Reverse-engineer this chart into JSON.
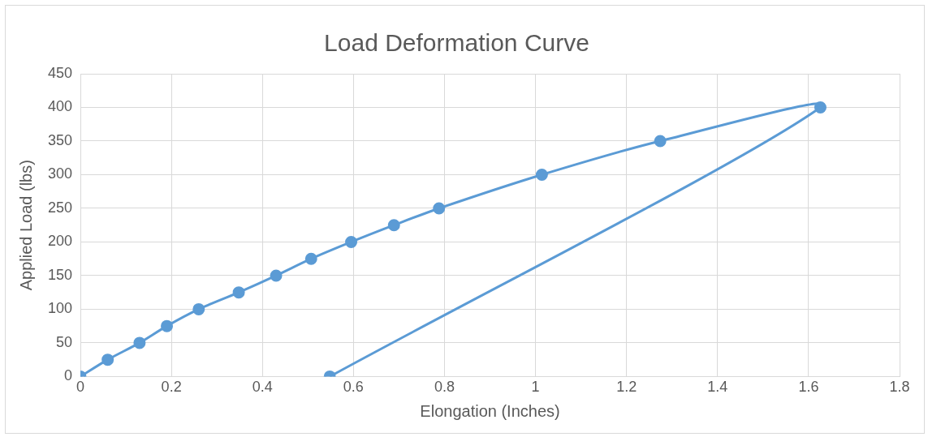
{
  "chart_data": {
    "type": "line",
    "title": "Load Deformation Curve",
    "xlabel": "Elongation (Inches)",
    "ylabel": "Applied Load (lbs)",
    "series": [
      {
        "color": "#5b9bd5",
        "x": [
          0,
          0.06,
          0.13,
          0.19,
          0.26,
          0.348,
          0.43,
          0.507,
          0.595,
          0.689,
          0.788,
          1.014,
          1.274,
          1.626,
          0.548
        ],
        "values": [
          0,
          25,
          50,
          75,
          100,
          125,
          150,
          175,
          200,
          225,
          250,
          300,
          350,
          400,
          0
        ]
      }
    ],
    "xlim": [
      0,
      1.8
    ],
    "xticks": [
      0,
      0.2,
      0.4,
      0.6,
      0.8,
      1,
      1.2,
      1.4,
      1.6,
      1.8
    ],
    "ylim": [
      0,
      450
    ],
    "yticks": [
      0,
      50,
      100,
      150,
      200,
      250,
      300,
      350,
      400,
      450
    ],
    "grid": true,
    "legend": false,
    "marker": "circle",
    "line_style": "solid"
  }
}
